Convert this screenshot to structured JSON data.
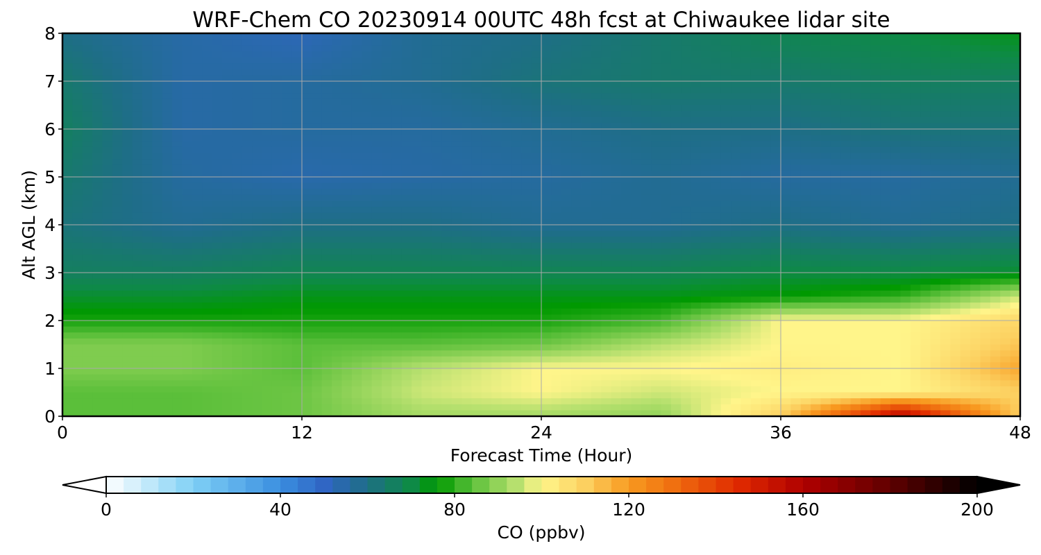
{
  "chart_data": {
    "type": "heatmap",
    "title": "WRF-Chem CO  20230914 00UTC 48h fcst at Chiwaukee lidar site",
    "xlabel": "Forecast Time (Hour)",
    "ylabel": "Alt AGL (km)",
    "xlim": [
      0,
      48
    ],
    "ylim": [
      0,
      8
    ],
    "xticks": [
      "0",
      "12",
      "24",
      "36",
      "48"
    ],
    "yticks": [
      "0",
      "1",
      "2",
      "3",
      "4",
      "5",
      "6",
      "7",
      "8"
    ],
    "grid": true,
    "time_hours": [
      0,
      6,
      12,
      18,
      24,
      30,
      36,
      42,
      48
    ],
    "altitude_km": [
      0,
      0.5,
      1,
      1.5,
      2,
      2.5,
      3,
      4,
      5,
      6,
      7,
      8
    ],
    "co_ppbv": [
      [
        84,
        84,
        86,
        92,
        92,
        90,
        110,
        160,
        110
      ],
      [
        84,
        84,
        86,
        96,
        100,
        96,
        100,
        100,
        110
      ],
      [
        88,
        88,
        84,
        94,
        100,
        100,
        102,
        100,
        118
      ],
      [
        88,
        88,
        84,
        84,
        86,
        94,
        100,
        100,
        112
      ],
      [
        78,
        78,
        78,
        78,
        78,
        82,
        100,
        100,
        108
      ],
      [
        72,
        72,
        74,
        74,
        74,
        74,
        76,
        80,
        96
      ],
      [
        66,
        66,
        68,
        68,
        68,
        68,
        70,
        70,
        72
      ],
      [
        62,
        58,
        60,
        60,
        58,
        58,
        60,
        58,
        60
      ],
      [
        64,
        56,
        54,
        55,
        56,
        58,
        56,
        56,
        58
      ],
      [
        66,
        55,
        56,
        56,
        58,
        60,
        60,
        62,
        62
      ],
      [
        64,
        55,
        56,
        58,
        62,
        64,
        64,
        66,
        66
      ],
      [
        60,
        55,
        52,
        58,
        60,
        64,
        68,
        70,
        74
      ]
    ],
    "colorbar": {
      "label": "CO  (ppbv)",
      "min": 0,
      "max": 200,
      "ticks": [
        "0",
        "40",
        "80",
        "120",
        "160",
        "200"
      ],
      "extend": "both"
    }
  }
}
